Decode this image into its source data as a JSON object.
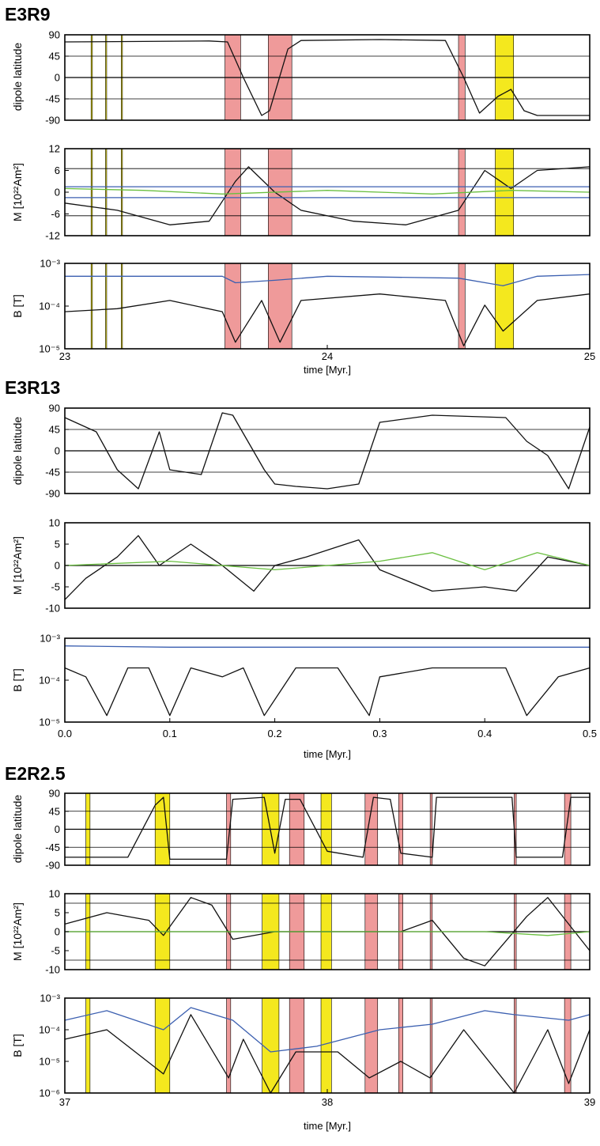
{
  "chart_data": [
    {
      "panel": "E3R9",
      "title": "E3R9",
      "type": "line",
      "xlabel": "time [Myr.]",
      "xlim": [
        23,
        25
      ],
      "xticks": [
        "23",
        "24",
        "25"
      ],
      "highlights": [
        {
          "from": 23.1,
          "to": 23.105,
          "color": "#f4e81e"
        },
        {
          "from": 23.155,
          "to": 23.158,
          "color": "#f4e81e"
        },
        {
          "from": 23.215,
          "to": 23.218,
          "color": "#f4e81e"
        },
        {
          "from": 23.61,
          "to": 23.67,
          "color": "#ef9a9a"
        },
        {
          "from": 23.775,
          "to": 23.865,
          "color": "#ef9a9a"
        },
        {
          "from": 24.5,
          "to": 24.525,
          "color": "#ef9a9a"
        },
        {
          "from": 24.64,
          "to": 24.71,
          "color": "#f4e81e"
        }
      ],
      "subplots": [
        {
          "ylabel": "dipole latitude",
          "ylim": [
            -90,
            90
          ],
          "yticks": [
            "90",
            "45",
            "0",
            "-45",
            "-90"
          ],
          "yscale": "linear",
          "hlines": [
            45,
            0,
            -45
          ],
          "series": [
            {
              "color": "#111111",
              "x": [
                23.0,
                23.3,
                23.55,
                23.62,
                23.68,
                23.75,
                23.78,
                23.85,
                23.9,
                24.2,
                24.45,
                24.52,
                24.58,
                24.65,
                24.7,
                24.75,
                24.8,
                25.0
              ],
              "y": [
                75,
                76,
                77,
                75,
                0,
                -80,
                -70,
                60,
                78,
                80,
                78,
                0,
                -75,
                -40,
                -25,
                -70,
                -80,
                -80
              ]
            }
          ]
        },
        {
          "ylabel": "M [10²²Am²]",
          "ylim": [
            -12,
            12
          ],
          "yticks": [
            "12",
            "6",
            "0",
            "-6",
            "-12"
          ],
          "yscale": "linear",
          "hlines": [
            6.5,
            1.5,
            -1.5,
            -6.5
          ],
          "series": [
            {
              "color": "#111111",
              "x": [
                23.0,
                23.2,
                23.4,
                23.55,
                23.65,
                23.7,
                23.8,
                23.9,
                24.1,
                24.3,
                24.5,
                24.6,
                24.7,
                24.8,
                25.0
              ],
              "y": [
                -3,
                -5,
                -9,
                -8,
                3,
                7,
                0,
                -5,
                -8,
                -9,
                -5,
                6,
                1,
                6,
                7
              ]
            },
            {
              "color": "#6abf40",
              "x": [
                23.0,
                23.3,
                23.6,
                24.0,
                24.4,
                24.7,
                25.0
              ],
              "y": [
                1,
                0.5,
                -0.5,
                0.5,
                -0.5,
                0.5,
                0
              ]
            },
            {
              "color": "#3b5fb0",
              "x": [
                23.0,
                25.0
              ],
              "y": [
                1.5,
                1.5
              ]
            },
            {
              "color": "#3b5fb0",
              "x": [
                23.0,
                25.0
              ],
              "y": [
                -1.5,
                -1.5
              ]
            }
          ]
        },
        {
          "ylabel": "B [T]",
          "ylim": [
            1e-05,
            0.002
          ],
          "yticks": [
            "10⁻³",
            "10⁻⁴",
            "10⁻⁵"
          ],
          "yscale": "log",
          "series": [
            {
              "color": "#3b5fb0",
              "x": [
                23.0,
                23.6,
                23.65,
                23.8,
                24.0,
                24.5,
                24.67,
                24.8,
                25.0
              ],
              "y": [
                0.0009,
                0.0009,
                0.0006,
                0.0007,
                0.0009,
                0.0008,
                0.0005,
                0.0009,
                0.001
              ]
            },
            {
              "color": "#111111",
              "x": [
                23.0,
                23.2,
                23.4,
                23.6,
                23.65,
                23.75,
                23.82,
                23.9,
                24.2,
                24.45,
                24.52,
                24.6,
                24.67,
                24.8,
                25.0
              ],
              "y": [
                0.0001,
                0.00012,
                0.0002,
                0.0001,
                1.5e-05,
                0.0002,
                1.5e-05,
                0.0002,
                0.0003,
                0.0002,
                1.2e-05,
                0.00015,
                3e-05,
                0.0002,
                0.0003
              ]
            }
          ]
        }
      ]
    },
    {
      "panel": "E3R13",
      "title": "E3R13",
      "type": "line",
      "xlabel": "time [Myr.]",
      "xlim": [
        0.0,
        0.5
      ],
      "xticks": [
        "0.0",
        "0.1",
        "0.2",
        "0.3",
        "0.4",
        "0.5"
      ],
      "highlights": [],
      "subplots": [
        {
          "ylabel": "dipole latitude",
          "ylim": [
            -90,
            90
          ],
          "yticks": [
            "90",
            "45",
            "0",
            "-45",
            "-90"
          ],
          "yscale": "linear",
          "hlines": [
            45,
            0,
            -45
          ],
          "series": [
            {
              "color": "#111111",
              "x": [
                0.0,
                0.03,
                0.05,
                0.07,
                0.09,
                0.1,
                0.13,
                0.15,
                0.16,
                0.19,
                0.2,
                0.22,
                0.25,
                0.28,
                0.3,
                0.35,
                0.42,
                0.44,
                0.46,
                0.48,
                0.5
              ],
              "y": [
                70,
                40,
                -40,
                -80,
                40,
                -40,
                -50,
                80,
                75,
                -40,
                -70,
                -75,
                -80,
                -70,
                60,
                75,
                70,
                20,
                -10,
                -80,
                50
              ]
            }
          ]
        },
        {
          "ylabel": "M [10²²Am²]",
          "ylim": [
            -10,
            10
          ],
          "yticks": [
            "10",
            "5",
            "0",
            "-5",
            "-10"
          ],
          "yscale": "linear",
          "hlines": [
            0
          ],
          "series": [
            {
              "color": "#111111",
              "x": [
                0.0,
                0.02,
                0.05,
                0.07,
                0.09,
                0.12,
                0.15,
                0.18,
                0.2,
                0.23,
                0.28,
                0.3,
                0.35,
                0.4,
                0.43,
                0.46,
                0.5
              ],
              "y": [
                -8,
                -3,
                2,
                7,
                0,
                5,
                0,
                -6,
                0,
                2,
                6,
                -1,
                -6,
                -5,
                -6,
                2,
                0
              ]
            },
            {
              "color": "#6abf40",
              "x": [
                0.0,
                0.1,
                0.2,
                0.3,
                0.35,
                0.4,
                0.45,
                0.5
              ],
              "y": [
                0,
                1,
                -1,
                1,
                3,
                -1,
                3,
                0
              ]
            }
          ]
        },
        {
          "ylabel": "B [T]",
          "ylim": [
            3e-06,
            0.002
          ],
          "yticks": [
            "10⁻³",
            "10⁻⁴",
            "10⁻⁵"
          ],
          "yscale": "log",
          "series": [
            {
              "color": "#3b5fb0",
              "x": [
                0.0,
                0.1,
                0.2,
                0.3,
                0.4,
                0.5
              ],
              "y": [
                0.0011,
                0.001,
                0.001,
                0.001,
                0.001,
                0.001
              ]
            },
            {
              "color": "#111111",
              "x": [
                0.0,
                0.02,
                0.04,
                0.06,
                0.08,
                0.1,
                0.12,
                0.15,
                0.17,
                0.19,
                0.22,
                0.26,
                0.29,
                0.3,
                0.35,
                0.42,
                0.44,
                0.47,
                0.5
              ],
              "y": [
                0.0002,
                0.0001,
                5e-06,
                0.0002,
                0.0002,
                5e-06,
                0.0002,
                0.0001,
                0.0002,
                5e-06,
                0.0002,
                0.0002,
                5e-06,
                0.0001,
                0.0002,
                0.0002,
                5e-06,
                0.0001,
                0.0002
              ]
            }
          ]
        }
      ]
    },
    {
      "panel": "E2R2.5",
      "title": "E2R2.5",
      "type": "line",
      "xlabel": "time [Myr.]",
      "xlim": [
        37,
        39.5
      ],
      "xticks": [
        "37",
        "38",
        "39"
      ],
      "highlights": [
        {
          "from": 37.1,
          "to": 37.12,
          "color": "#f4e81e"
        },
        {
          "from": 37.43,
          "to": 37.5,
          "color": "#f4e81e"
        },
        {
          "from": 37.77,
          "to": 37.79,
          "color": "#ef9a9a"
        },
        {
          "from": 37.94,
          "to": 38.02,
          "color": "#f4e81e"
        },
        {
          "from": 38.07,
          "to": 38.14,
          "color": "#ef9a9a"
        },
        {
          "from": 38.22,
          "to": 38.27,
          "color": "#f4e81e"
        },
        {
          "from": 38.43,
          "to": 38.49,
          "color": "#ef9a9a"
        },
        {
          "from": 38.59,
          "to": 38.61,
          "color": "#ef9a9a"
        },
        {
          "from": 38.74,
          "to": 38.75,
          "color": "#ef9a9a"
        },
        {
          "from": 39.14,
          "to": 39.15,
          "color": "#ef9a9a"
        },
        {
          "from": 39.38,
          "to": 39.41,
          "color": "#ef9a9a"
        }
      ],
      "subplots": [
        {
          "ylabel": "dipole latitude",
          "ylim": [
            -90,
            90
          ],
          "yticks": [
            "90",
            "45",
            "0",
            "-45",
            "-90"
          ],
          "yscale": "linear",
          "hlines": [
            45,
            0,
            -45
          ],
          "series": [
            {
              "color": "#111111",
              "x": [
                37.0,
                37.3,
                37.43,
                37.47,
                37.5,
                37.77,
                37.8,
                37.95,
                38.0,
                38.05,
                38.12,
                38.25,
                38.42,
                38.47,
                38.55,
                38.6,
                38.75,
                38.77,
                39.13,
                39.15,
                39.37,
                39.41,
                39.5
              ],
              "y": [
                -70,
                -70,
                60,
                80,
                -75,
                -75,
                75,
                80,
                -60,
                75,
                75,
                -55,
                -70,
                80,
                75,
                -60,
                -70,
                80,
                80,
                -70,
                -70,
                80,
                80
              ]
            }
          ]
        },
        {
          "ylabel": "M [10²²Am²]",
          "ylim": [
            -10,
            10
          ],
          "yticks": [
            "10",
            "5",
            "0",
            "-5",
            "-10"
          ],
          "yscale": "linear",
          "hlines": [
            7.5,
            0,
            -7.5
          ],
          "series": [
            {
              "color": "#111111",
              "x": [
                37.0,
                37.2,
                37.4,
                37.47,
                37.6,
                37.7,
                37.8,
                38.0,
                38.3,
                38.6,
                38.75,
                38.9,
                39.0,
                39.2,
                39.3,
                39.4,
                39.5
              ],
              "y": [
                2,
                5,
                3,
                -1,
                9,
                7,
                -2,
                0,
                0,
                0,
                3,
                -7,
                -9,
                4,
                9,
                2,
                -5
              ]
            },
            {
              "color": "#6abf40",
              "x": [
                37.0,
                37.5,
                38.0,
                38.5,
                39.0,
                39.3,
                39.5
              ],
              "y": [
                0,
                0,
                0,
                0,
                0,
                -1,
                0
              ]
            }
          ]
        },
        {
          "ylabel": "B [T]",
          "ylim": [
            1e-06,
            0.001
          ],
          "yticks": [
            "10⁻³",
            "10⁻⁴",
            "10⁻⁵",
            "10⁻⁶"
          ],
          "yscale": "log",
          "series": [
            {
              "color": "#3b5fb0",
              "x": [
                37.0,
                37.2,
                37.47,
                37.6,
                37.8,
                37.98,
                38.2,
                38.5,
                38.75,
                39.0,
                39.14,
                39.4,
                39.5
              ],
              "y": [
                0.0002,
                0.0004,
                0.0001,
                0.0005,
                0.0002,
                2e-05,
                3e-05,
                0.0001,
                0.00015,
                0.0004,
                0.0003,
                0.0002,
                0.0003
              ]
            },
            {
              "color": "#111111",
              "x": [
                37.0,
                37.2,
                37.47,
                37.6,
                37.78,
                37.85,
                37.98,
                38.1,
                38.3,
                38.45,
                38.6,
                38.74,
                38.9,
                39.14,
                39.3,
                39.4,
                39.5
              ],
              "y": [
                5e-05,
                0.0001,
                4e-06,
                0.0003,
                3e-06,
                5e-05,
                1e-06,
                2e-05,
                2e-05,
                3e-06,
                1e-05,
                3e-06,
                0.0001,
                1e-06,
                0.0001,
                2e-06,
                0.0001
              ]
            }
          ]
        }
      ]
    }
  ]
}
